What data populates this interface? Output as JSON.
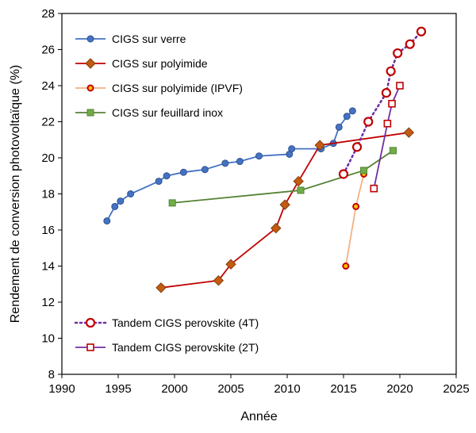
{
  "chart_data": {
    "type": "line",
    "xlabel": "Année",
    "ylabel": "Rendement de conversion photovoltaïque (%)",
    "xlim": [
      1990,
      2025
    ],
    "ylim": [
      8,
      28
    ],
    "xticks": [
      1990,
      1995,
      2000,
      2005,
      2010,
      2015,
      2020,
      2025
    ],
    "yticks": [
      8,
      10,
      12,
      14,
      16,
      18,
      20,
      22,
      24,
      26,
      28
    ],
    "grid": false,
    "legend_top": "top-left",
    "legend_bottom": "bottom-left",
    "series": [
      {
        "name": "CIGS sur verre",
        "color": "#4472c4",
        "marker": "circle",
        "line": "solid",
        "legend_group": "top",
        "x": [
          1994,
          1994.7,
          1995.2,
          1996.1,
          1998.6,
          1999.3,
          2000.8,
          2002.7,
          2004.5,
          2005.8,
          2007.5,
          2010.2,
          2010.4,
          2013.0,
          2014.1,
          2014.6,
          2015.3,
          2015.8
        ],
        "y": [
          16.5,
          17.3,
          17.6,
          18.0,
          18.7,
          19.0,
          19.2,
          19.35,
          19.7,
          19.8,
          20.1,
          20.2,
          20.5,
          20.5,
          20.8,
          21.7,
          22.3,
          22.6
        ]
      },
      {
        "name": "CIGS sur polyimide",
        "color": "#c55a11",
        "line_color": "#c00000",
        "marker": "diamond",
        "line": "solid",
        "legend_group": "top",
        "x": [
          1998.8,
          2003.9,
          2005.0,
          2009.0,
          2009.8,
          2011.0,
          2012.9,
          2020.8
        ],
        "y": [
          12.8,
          13.2,
          14.1,
          16.1,
          17.4,
          18.7,
          20.7,
          21.4
        ]
      },
      {
        "name": "CIGS sur polyimide (IPVF)",
        "color": "#f4b183",
        "marker": "ring",
        "line": "solid",
        "legend_group": "top",
        "x": [
          2015.2,
          2016.1,
          2016.8
        ],
        "y": [
          14.0,
          17.3,
          19.1
        ]
      },
      {
        "name": "CIGS sur feuillard inox",
        "color": "#70ad47",
        "line_color": "#548235",
        "marker": "square",
        "line": "solid",
        "legend_group": "top",
        "x": [
          1999.8,
          2011.2,
          2016.8,
          2019.4
        ],
        "y": [
          17.5,
          18.2,
          19.3,
          20.4
        ]
      },
      {
        "name": "Tandem CIGS perovskite (4T)",
        "color": "#7030a0",
        "marker_color": "#c00000",
        "marker": "open-circle",
        "line": "dotted",
        "legend_group": "bottom",
        "x": [
          2015.0,
          2016.2,
          2017.2,
          2018.8,
          2019.2,
          2019.8,
          2020.9,
          2021.9
        ],
        "y": [
          19.1,
          20.6,
          22.0,
          23.6,
          24.8,
          25.8,
          26.3,
          27.0
        ]
      },
      {
        "name": "Tandem CIGS perovskite (2T)",
        "color": "#7030a0",
        "marker_color": "#c00000",
        "marker": "open-square",
        "line": "solid",
        "legend_group": "bottom",
        "x": [
          2017.7,
          2018.9,
          2019.3,
          2020.0
        ],
        "y": [
          18.3,
          21.9,
          23.0,
          24.0
        ]
      }
    ]
  }
}
